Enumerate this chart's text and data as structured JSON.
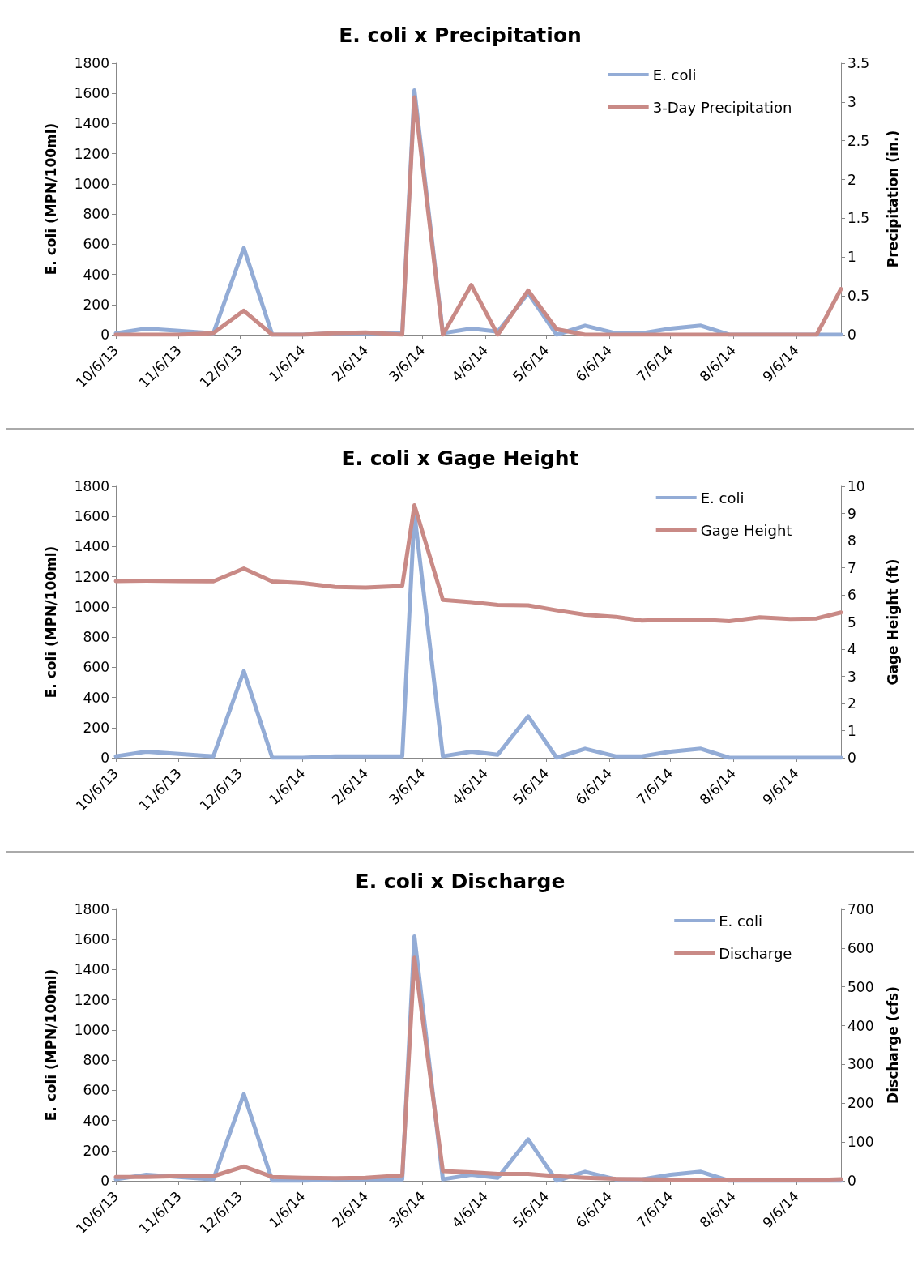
{
  "chart_data": [
    {
      "type": "line",
      "title": "E. coli x Precipitation",
      "ylabel": "E. coli (MPN/100ml)",
      "y2label": "Precipitation (in.)",
      "x": [
        "2013-10-06",
        "2013-10-21",
        "2013-11-06",
        "2013-11-23",
        "2013-12-08",
        "2013-12-22",
        "2014-01-06",
        "2014-01-22",
        "2014-02-06",
        "2014-02-24",
        "2014-03-02",
        "2014-03-16",
        "2014-03-30",
        "2014-04-12",
        "2014-04-27",
        "2014-05-11",
        "2014-05-25",
        "2014-06-09",
        "2014-06-22",
        "2014-07-06",
        "2014-07-21",
        "2014-08-04",
        "2014-08-19",
        "2014-09-03",
        "2014-09-16",
        "2014-09-28"
      ],
      "series": [
        {
          "name": "E. coli",
          "color": "#93acd6",
          "values": [
            10,
            40,
            25,
            10,
            575,
            0,
            0,
            10,
            10,
            10,
            1620,
            10,
            40,
            20,
            275,
            0,
            60,
            10,
            10,
            40,
            60,
            0,
            0,
            0,
            0,
            0
          ]
        },
        {
          "name": "3-Day Precipitation",
          "color": "#c98a86",
          "axis": "y2",
          "values": [
            0,
            0,
            0,
            0.02,
            0.31,
            0,
            0,
            0.02,
            0.03,
            0,
            3.06,
            0,
            0.64,
            0,
            0.57,
            0.07,
            0,
            0,
            0,
            0,
            0,
            0,
            0,
            0,
            0,
            0.59
          ]
        }
      ],
      "xlim": [
        "2013-10-06",
        "2014-09-28"
      ],
      "xticks": [
        {
          "value": "2013-10-06",
          "label": "10/6/13"
        },
        {
          "value": "2013-11-06",
          "label": "11/6/13"
        },
        {
          "value": "2013-12-06",
          "label": "12/6/13"
        },
        {
          "value": "2014-01-06",
          "label": "1/6/14"
        },
        {
          "value": "2014-02-06",
          "label": "2/6/14"
        },
        {
          "value": "2014-03-06",
          "label": "3/6/14"
        },
        {
          "value": "2014-04-06",
          "label": "4/6/14"
        },
        {
          "value": "2014-05-06",
          "label": "5/6/14"
        },
        {
          "value": "2014-06-06",
          "label": "6/6/14"
        },
        {
          "value": "2014-07-06",
          "label": "7/6/14"
        },
        {
          "value": "2014-08-06",
          "label": "8/6/14"
        },
        {
          "value": "2014-09-06",
          "label": "9/6/14"
        }
      ],
      "ylim": [
        0,
        1800
      ],
      "yticks": [
        0,
        200,
        400,
        600,
        800,
        1000,
        1200,
        1400,
        1600,
        1800
      ],
      "y2lim": [
        0,
        3.5
      ],
      "y2ticks": [
        0,
        0.5,
        1,
        1.5,
        2,
        2.5,
        3,
        3.5
      ],
      "legend": "top right",
      "grid": false,
      "marker": "none",
      "line_style": "solid"
    },
    {
      "type": "line",
      "title": "E. coli x Gage Height",
      "ylabel": "E. coli (MPN/100ml)",
      "y2label": "Gage Height (ft)",
      "x": [
        "2013-10-06",
        "2013-10-21",
        "2013-11-06",
        "2013-11-23",
        "2013-12-08",
        "2013-12-22",
        "2014-01-06",
        "2014-01-22",
        "2014-02-06",
        "2014-02-24",
        "2014-03-02",
        "2014-03-16",
        "2014-03-30",
        "2014-04-12",
        "2014-04-27",
        "2014-05-11",
        "2014-05-25",
        "2014-06-09",
        "2014-06-22",
        "2014-07-06",
        "2014-07-21",
        "2014-08-04",
        "2014-08-19",
        "2014-09-03",
        "2014-09-16",
        "2014-09-28"
      ],
      "series": [
        {
          "name": "E. coli",
          "color": "#93acd6",
          "values": [
            10,
            40,
            25,
            10,
            575,
            0,
            0,
            10,
            10,
            10,
            1620,
            10,
            40,
            20,
            275,
            0,
            60,
            10,
            10,
            40,
            60,
            0,
            0,
            0,
            0,
            0
          ]
        },
        {
          "name": "Gage Height",
          "color": "#c98a86",
          "axis": "y2",
          "values": [
            6.51,
            6.52,
            6.51,
            6.5,
            6.97,
            6.49,
            6.43,
            6.29,
            6.27,
            6.33,
            9.3,
            5.81,
            5.73,
            5.63,
            5.61,
            5.43,
            5.27,
            5.19,
            5.05,
            5.09,
            5.09,
            5.03,
            5.17,
            5.11,
            5.13,
            5.35
          ]
        }
      ],
      "xlim": [
        "2013-10-06",
        "2014-09-28"
      ],
      "xticks": [
        {
          "value": "2013-10-06",
          "label": "10/6/13"
        },
        {
          "value": "2013-11-06",
          "label": "11/6/13"
        },
        {
          "value": "2013-12-06",
          "label": "12/6/13"
        },
        {
          "value": "2014-01-06",
          "label": "1/6/14"
        },
        {
          "value": "2014-02-06",
          "label": "2/6/14"
        },
        {
          "value": "2014-03-06",
          "label": "3/6/14"
        },
        {
          "value": "2014-04-06",
          "label": "4/6/14"
        },
        {
          "value": "2014-05-06",
          "label": "5/6/14"
        },
        {
          "value": "2014-06-06",
          "label": "6/6/14"
        },
        {
          "value": "2014-07-06",
          "label": "7/6/14"
        },
        {
          "value": "2014-08-06",
          "label": "8/6/14"
        },
        {
          "value": "2014-09-06",
          "label": "9/6/14"
        }
      ],
      "ylim": [
        0,
        1800
      ],
      "yticks": [
        0,
        200,
        400,
        600,
        800,
        1000,
        1200,
        1400,
        1600,
        1800
      ],
      "y2lim": [
        0,
        10
      ],
      "y2ticks": [
        0,
        1,
        2,
        3,
        4,
        5,
        6,
        7,
        8,
        9,
        10
      ],
      "legend": "top right",
      "grid": false,
      "marker": "none",
      "line_style": "solid"
    },
    {
      "type": "line",
      "title": "E. coli x Discharge",
      "ylabel": "E. coli (MPN/100ml)",
      "y2label": "Discharge (cfs)",
      "x": [
        "2013-10-06",
        "2013-10-21",
        "2013-11-06",
        "2013-11-23",
        "2013-12-08",
        "2013-12-22",
        "2014-01-06",
        "2014-01-22",
        "2014-02-06",
        "2014-02-24",
        "2014-03-02",
        "2014-03-16",
        "2014-03-30",
        "2014-04-12",
        "2014-04-27",
        "2014-05-11",
        "2014-05-25",
        "2014-06-09",
        "2014-06-22",
        "2014-07-06",
        "2014-07-21",
        "2014-08-04",
        "2014-08-19",
        "2014-09-03",
        "2014-09-16",
        "2014-09-28"
      ],
      "series": [
        {
          "name": "E. coli",
          "color": "#93acd6",
          "values": [
            10,
            40,
            25,
            10,
            575,
            0,
            0,
            10,
            10,
            10,
            1620,
            10,
            40,
            20,
            275,
            0,
            60,
            10,
            10,
            40,
            60,
            0,
            0,
            0,
            0,
            0
          ]
        },
        {
          "name": "Discharge",
          "color": "#c98a86",
          "axis": "y2",
          "values": [
            10,
            10,
            12,
            12,
            37,
            10,
            8,
            7,
            8,
            14,
            575,
            25,
            22,
            18,
            18,
            12,
            8,
            5,
            4,
            3,
            3,
            2,
            2,
            2,
            2,
            4
          ]
        }
      ],
      "xlim": [
        "2013-10-06",
        "2014-09-28"
      ],
      "xticks": [
        {
          "value": "2013-10-06",
          "label": "10/6/13"
        },
        {
          "value": "2013-11-06",
          "label": "11/6/13"
        },
        {
          "value": "2013-12-06",
          "label": "12/6/13"
        },
        {
          "value": "2014-01-06",
          "label": "1/6/14"
        },
        {
          "value": "2014-02-06",
          "label": "2/6/14"
        },
        {
          "value": "2014-03-06",
          "label": "3/6/14"
        },
        {
          "value": "2014-04-06",
          "label": "4/6/14"
        },
        {
          "value": "2014-05-06",
          "label": "5/6/14"
        },
        {
          "value": "2014-06-06",
          "label": "6/6/14"
        },
        {
          "value": "2014-07-06",
          "label": "7/6/14"
        },
        {
          "value": "2014-08-06",
          "label": "8/6/14"
        },
        {
          "value": "2014-09-06",
          "label": "9/6/14"
        }
      ],
      "ylim": [
        0,
        1800
      ],
      "yticks": [
        0,
        200,
        400,
        600,
        800,
        1000,
        1200,
        1400,
        1600,
        1800
      ],
      "y2lim": [
        0,
        700
      ],
      "y2ticks": [
        0,
        100,
        200,
        300,
        400,
        500,
        600,
        700
      ],
      "legend": "top right",
      "grid": false,
      "marker": "none",
      "line_style": "solid"
    }
  ]
}
